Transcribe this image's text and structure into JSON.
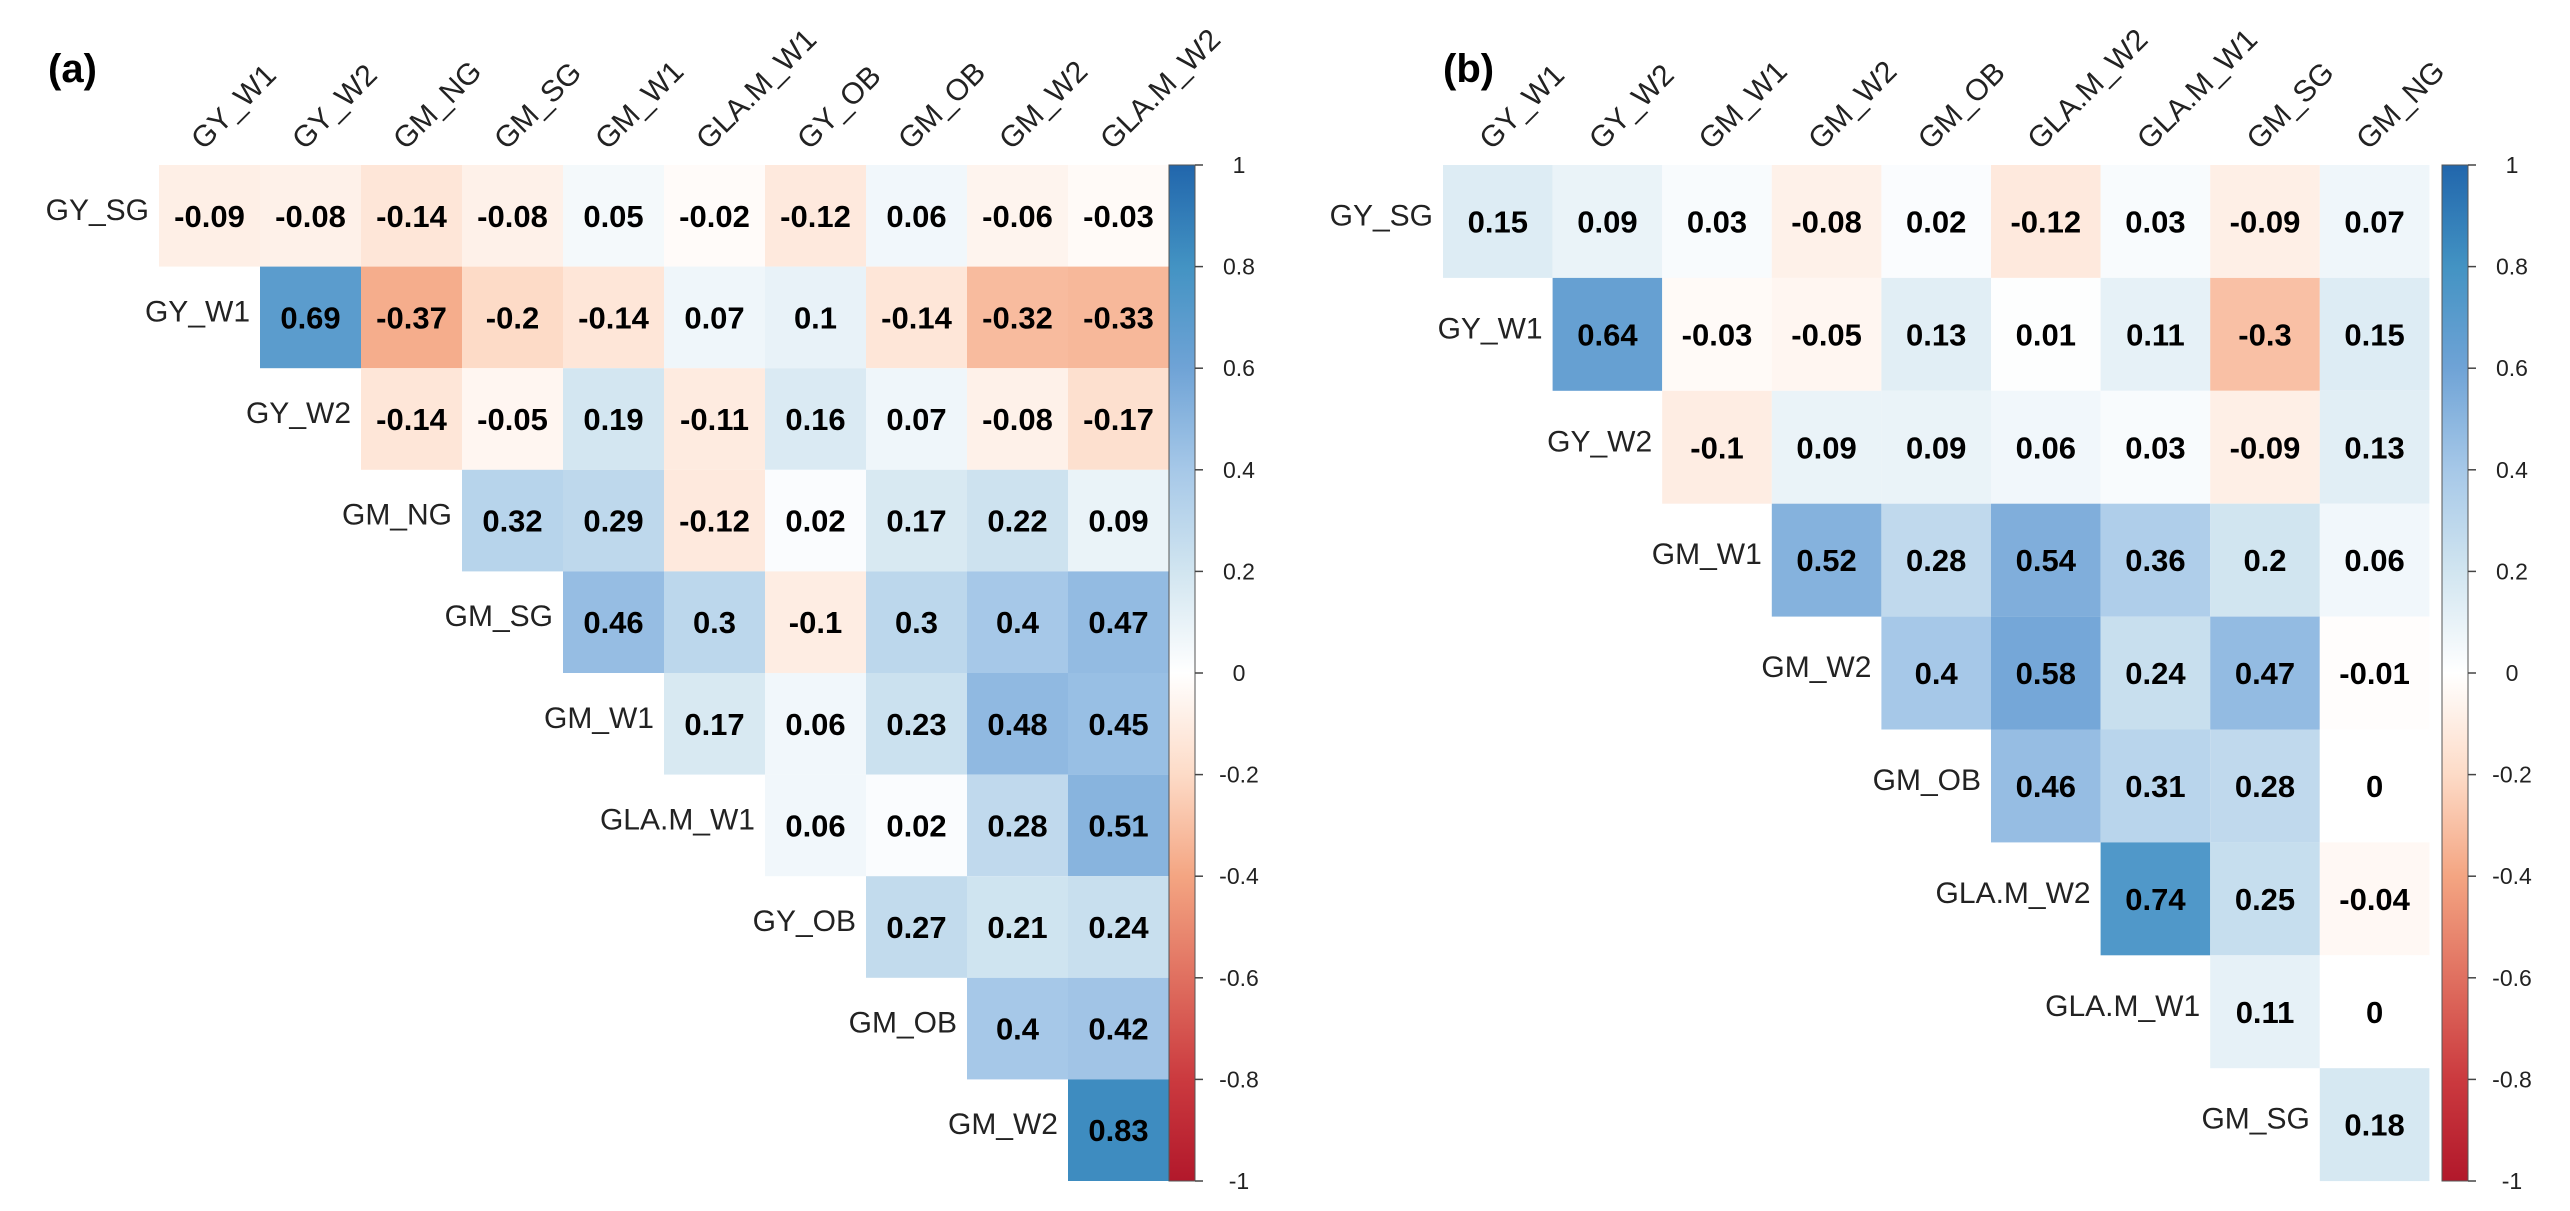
{
  "chart_data": [
    {
      "type": "heatmap",
      "panel": "(a)",
      "columns": [
        "GY_W1",
        "GY_W2",
        "GM_NG",
        "GM_SG",
        "GM_W1",
        "GLA.M_W1",
        "GY_OB",
        "GM_OB",
        "GM_W2",
        "GLA.M_W2"
      ],
      "rows": [
        "GY_SG",
        "GY_W1",
        "GY_W2",
        "GM_NG",
        "GM_SG",
        "GM_W1",
        "GLA.M_W1",
        "GY_OB",
        "GM_OB",
        "GM_W2"
      ],
      "values": [
        [
          -0.09,
          -0.08,
          -0.14,
          -0.08,
          0.05,
          -0.02,
          -0.12,
          0.06,
          -0.06,
          -0.03
        ],
        [
          0.69,
          -0.37,
          -0.2,
          -0.14,
          0.07,
          0.1,
          -0.14,
          -0.32,
          -0.33
        ],
        [
          -0.14,
          -0.05,
          0.19,
          -0.11,
          0.16,
          0.07,
          -0.08,
          -0.17
        ],
        [
          0.32,
          0.29,
          -0.12,
          0.02,
          0.17,
          0.22,
          0.09
        ],
        [
          0.46,
          0.3,
          -0.1,
          0.3,
          0.4,
          0.47
        ],
        [
          0.17,
          0.06,
          0.23,
          0.48,
          0.45
        ],
        [
          0.06,
          0.02,
          0.28,
          0.51
        ],
        [
          0.27,
          0.21,
          0.24
        ],
        [
          0.4,
          0.42
        ],
        [
          0.83
        ]
      ],
      "value_labels": [
        [
          "-0.09",
          "-0.08",
          "-0.14",
          "-0.08",
          "0.05",
          "-0.02",
          "-0.12",
          "0.06",
          "-0.06",
          "-0.03"
        ],
        [
          "0.69",
          "-0.37",
          "-0.2",
          "-0.14",
          "0.07",
          "0.1",
          "-0.14",
          "-0.32",
          "-0.33"
        ],
        [
          "-0.14",
          "-0.05",
          "0.19",
          "-0.11",
          "0.16",
          "0.07",
          "-0.08",
          "-0.17"
        ],
        [
          "0.32",
          "0.29",
          "-0.12",
          "0.02",
          "0.17",
          "0.22",
          "0.09"
        ],
        [
          "0.46",
          "0.3",
          "-0.1",
          "0.3",
          "0.4",
          "0.47"
        ],
        [
          "0.17",
          "0.06",
          "0.23",
          "0.48",
          "0.45"
        ],
        [
          "0.06",
          "0.02",
          "0.28",
          "0.51"
        ],
        [
          "0.27",
          "0.21",
          "0.24"
        ],
        [
          "0.4",
          "0.42"
        ],
        [
          "0.83"
        ]
      ],
      "value_range": [
        -1,
        1
      ],
      "colorbar_ticks": [
        "1",
        "0.8",
        "0.6",
        "0.4",
        "0.2",
        "0",
        "-0.2",
        "-0.4",
        "-0.6",
        "-0.8",
        "-1"
      ]
    },
    {
      "type": "heatmap",
      "panel": "(b)",
      "columns": [
        "GY_W1",
        "GY_W2",
        "GM_W1",
        "GM_W2",
        "GM_OB",
        "GLA.M_W2",
        "GLA.M_W1",
        "GM_SG",
        "GM_NG"
      ],
      "rows": [
        "GY_SG",
        "GY_W1",
        "GY_W2",
        "GM_W1",
        "GM_W2",
        "GM_OB",
        "GLA.M_W2",
        "GLA.M_W1",
        "GM_SG"
      ],
      "values": [
        [
          0.15,
          0.09,
          0.03,
          -0.08,
          0.02,
          -0.12,
          0.03,
          -0.09,
          0.07
        ],
        [
          0.64,
          -0.03,
          -0.05,
          0.13,
          0.01,
          0.11,
          -0.3,
          0.15
        ],
        [
          -0.1,
          0.09,
          0.09,
          0.06,
          0.03,
          -0.09,
          0.13
        ],
        [
          0.52,
          0.28,
          0.54,
          0.36,
          0.2,
          0.06
        ],
        [
          0.4,
          0.58,
          0.24,
          0.47,
          -0.01
        ],
        [
          0.46,
          0.31,
          0.28,
          0
        ],
        [
          0.74,
          0.25,
          -0.04
        ],
        [
          0.11,
          0
        ],
        [
          0.18
        ]
      ],
      "value_labels": [
        [
          "0.15",
          "0.09",
          "0.03",
          "-0.08",
          "0.02",
          "-0.12",
          "0.03",
          "-0.09",
          "0.07"
        ],
        [
          "0.64",
          "-0.03",
          "-0.05",
          "0.13",
          "0.01",
          "0.11",
          "-0.3",
          "0.15"
        ],
        [
          "-0.1",
          "0.09",
          "0.09",
          "0.06",
          "0.03",
          "-0.09",
          "0.13"
        ],
        [
          "0.52",
          "0.28",
          "0.54",
          "0.36",
          "0.2",
          "0.06"
        ],
        [
          "0.4",
          "0.58",
          "0.24",
          "0.47",
          "-0.01"
        ],
        [
          "0.46",
          "0.31",
          "0.28",
          "0"
        ],
        [
          "0.74",
          "0.25",
          "-0.04"
        ],
        [
          "0.11",
          "0"
        ],
        [
          "0.18"
        ]
      ],
      "value_range": [
        -1,
        1
      ],
      "colorbar_ticks": [
        "1",
        "0.8",
        "0.6",
        "0.4",
        "0.2",
        "0",
        "-0.2",
        "-0.4",
        "-0.6",
        "-0.8",
        "-1"
      ]
    }
  ],
  "colors": {
    "negative": "#b2182b",
    "neutral": "#ffffff",
    "positive": "#2166ac"
  }
}
